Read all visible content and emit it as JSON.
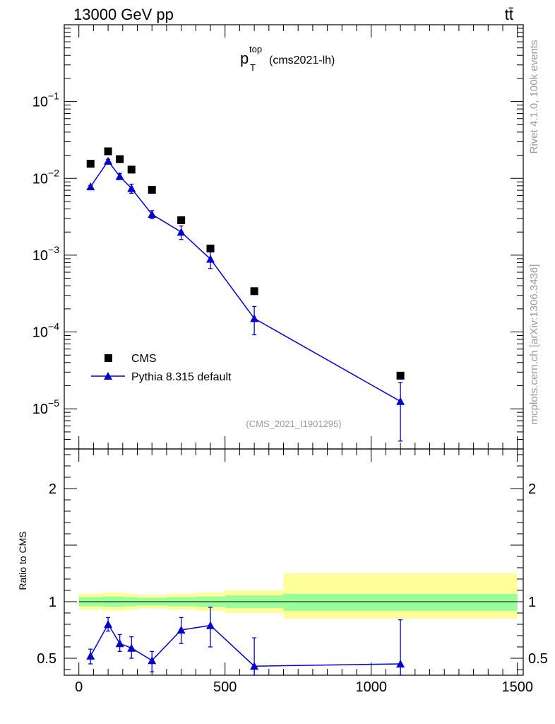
{
  "header": {
    "energy_label": "13000 GeV pp",
    "process_label": "tt̄"
  },
  "side_labels": {
    "rivet": "Rivet 4.1.0,  100k events",
    "site": "mcplots.cern.ch [arXiv:1306.3436]"
  },
  "chart_data": [
    {
      "type": "scatter",
      "panel": "main",
      "title_main": "p",
      "title_sup": "top",
      "title_sub": "T",
      "title_suffix": "(cms2021-lh)",
      "analysis_tag": "(CMS_2021_I1901295)",
      "yscale": "log",
      "ylim": [
        3e-06,
        1
      ],
      "xlim": [
        -50,
        1520
      ],
      "ytick_labels": [
        {
          "value": 1e-05,
          "base": "10",
          "exp": "−5"
        },
        {
          "value": 0.0001,
          "base": "10",
          "exp": "−4"
        },
        {
          "value": 0.001,
          "base": "10",
          "exp": "−3"
        },
        {
          "value": 0.01,
          "base": "10",
          "exp": "−2"
        },
        {
          "value": 0.1,
          "base": "10",
          "exp": "−1"
        }
      ],
      "legend": {
        "position": "bottom-left",
        "entries": [
          {
            "label": "CMS",
            "marker": "square",
            "color": "#000000"
          },
          {
            "label": "Pythia 8.315 default",
            "marker": "triangle",
            "color": "#0000cc"
          }
        ]
      },
      "series": [
        {
          "name": "CMS",
          "color": "#000000",
          "x": [
            40,
            100,
            140,
            180,
            250,
            350,
            450,
            600,
            1100
          ],
          "y": [
            0.0155,
            0.0225,
            0.0178,
            0.013,
            0.0071,
            0.00285,
            0.00122,
            0.00034,
            2.7e-05
          ]
        },
        {
          "name": "Pythia 8.315 default",
          "color": "#0000cc",
          "x": [
            40,
            100,
            140,
            180,
            250,
            350,
            450,
            600,
            1100
          ],
          "y": [
            0.0078,
            0.0168,
            0.0106,
            0.0074,
            0.0034,
            0.002,
            0.00089,
            0.00015,
            1.25e-05
          ],
          "yerr_low": [
            0.0003,
            0.0008,
            0.0008,
            0.001,
            0.0004,
            0.0004,
            0.00022,
            5.8e-05,
            8.7e-06
          ],
          "yerr_high": [
            0.0003,
            0.0009,
            0.001,
            0.001,
            0.0004,
            0.0004,
            0.00026,
            6.5e-05,
            9.5e-06
          ]
        }
      ]
    },
    {
      "type": "line",
      "panel": "ratio",
      "ylabel": "Ratio to CMS",
      "yscale": "linear",
      "ylim": [
        0.35,
        2.35
      ],
      "xlim": [
        -50,
        1520
      ],
      "ytick_labels": [
        "0.5",
        "1",
        "2"
      ],
      "ytick_values": [
        0.5,
        1,
        2
      ],
      "xtick_labels": [
        "0",
        "500",
        "1000",
        "1500"
      ],
      "xtick_values": [
        0,
        500,
        1000,
        1500
      ],
      "bands": {
        "bins": [
          [
            0,
            80
          ],
          [
            80,
            120
          ],
          [
            120,
            160
          ],
          [
            160,
            200
          ],
          [
            200,
            300
          ],
          [
            300,
            400
          ],
          [
            400,
            500
          ],
          [
            500,
            700
          ],
          [
            700,
            1500
          ]
        ],
        "yellow_low": [
          0.93,
          0.92,
          0.92,
          0.93,
          0.94,
          0.93,
          0.92,
          0.9,
          0.85
        ],
        "yellow_high": [
          1.07,
          1.08,
          1.08,
          1.07,
          1.06,
          1.07,
          1.08,
          1.1,
          1.25
        ],
        "green_low": [
          0.96,
          0.955,
          0.955,
          0.96,
          0.965,
          0.96,
          0.955,
          0.945,
          0.92
        ],
        "green_high": [
          1.04,
          1.045,
          1.045,
          1.04,
          1.035,
          1.04,
          1.045,
          1.055,
          1.07
        ]
      },
      "series": [
        {
          "name": "Pythia 8.315 default",
          "color": "#0000cc",
          "x": [
            40,
            100,
            140,
            180,
            250,
            350,
            450,
            600,
            1100
          ],
          "y": [
            0.52,
            0.8,
            0.63,
            0.59,
            0.48,
            0.75,
            0.79,
            0.43,
            0.45
          ],
          "yerr_low": [
            0.07,
            0.06,
            0.07,
            0.09,
            0.1,
            0.12,
            0.19,
            0.25,
            0.25
          ],
          "yerr_high": [
            0.06,
            0.06,
            0.08,
            0.1,
            0.08,
            0.11,
            0.16,
            0.25,
            0.39
          ]
        }
      ]
    }
  ]
}
